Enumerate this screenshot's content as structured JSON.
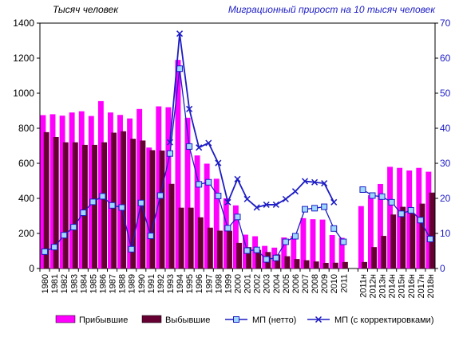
{
  "chart_data": {
    "type": "bar",
    "left_axis_label": "Тысяч человек",
    "right_axis_label": "Миграционный прирост на 10 тысяч человек",
    "categories": [
      "1980",
      "1981",
      "1982",
      "1983",
      "1984",
      "1985",
      "1986",
      "1987",
      "1988",
      "1989",
      "1990",
      "1991",
      "1992",
      "1993",
      "1994",
      "1995",
      "1996",
      "1997",
      "1998",
      "1999",
      "2000",
      "2001",
      "2002",
      "2003",
      "2004",
      "2005",
      "2006",
      "2007",
      "2008",
      "2009",
      "2010",
      "2011",
      "",
      "2011н",
      "2012н",
      "2013н",
      "2014н",
      "2015н",
      "2016н",
      "2017н",
      "2018н"
    ],
    "y_left": {
      "min": 0,
      "max": 1400,
      "ticks": [
        0,
        200,
        400,
        600,
        800,
        1000,
        1200,
        1400
      ]
    },
    "y_right": {
      "min": 0,
      "max": 70,
      "ticks": [
        0,
        10,
        20,
        30,
        40,
        50,
        60,
        70
      ]
    },
    "series": [
      {
        "name": "Прибывшие",
        "kind": "bar",
        "axis": "left",
        "color": "#ff00ff",
        "values": [
          875,
          880,
          872,
          890,
          897,
          870,
          955,
          890,
          876,
          856,
          910,
          690,
          925,
          920,
          1190,
          860,
          645,
          598,
          512,
          400,
          360,
          193,
          184,
          129,
          119,
          177,
          186,
          287,
          281,
          279,
          191,
          175,
          null,
          356,
          418,
          482,
          580,
          574,
          559,
          574,
          552
        ]
      },
      {
        "name": "Выбывшие",
        "kind": "bar",
        "axis": "left",
        "color": "#660033",
        "values": [
          778,
          750,
          720,
          720,
          705,
          705,
          720,
          775,
          783,
          740,
          730,
          675,
          673,
          483,
          347,
          347,
          292,
          233,
          216,
          215,
          146,
          122,
          106,
          94,
          80,
          70,
          54,
          47,
          40,
          32,
          33,
          37,
          null,
          37,
          122,
          186,
          308,
          352,
          313,
          370,
          433
        ]
      },
      {
        "name": "МП  (нетто)",
        "kind": "line",
        "axis": "right",
        "color": "#1c1cc4",
        "marker": "square",
        "values": [
          4.8,
          6.1,
          9.5,
          11.8,
          15.9,
          19.0,
          20.6,
          18.0,
          17.4,
          5.5,
          18.7,
          9.3,
          20.8,
          32.8,
          57.0,
          34.8,
          24.0,
          24.6,
          20.7,
          11.5,
          14.7,
          5.1,
          5.3,
          2.6,
          3.0,
          7.6,
          9.2,
          16.9,
          17.2,
          17.6,
          11.4,
          7.6,
          null,
          22.5,
          20.8,
          20.5,
          18.9,
          15.6,
          16.6,
          13.8,
          8.4
        ]
      },
      {
        "name": "МП  (с корректировками)",
        "kind": "line",
        "axis": "right",
        "color": "#1c1cc4",
        "marker": "cross",
        "values": [
          null,
          null,
          null,
          null,
          null,
          null,
          null,
          null,
          null,
          null,
          null,
          null,
          null,
          36.0,
          67.0,
          45.5,
          34.5,
          35.8,
          30.1,
          18.9,
          25.5,
          19.8,
          17.4,
          18.2,
          18.2,
          19.8,
          22.0,
          24.9,
          24.6,
          24.3,
          18.9,
          null,
          null,
          null,
          null,
          null,
          null,
          null,
          null,
          null,
          null
        ]
      }
    ],
    "legend_position": "bottom"
  }
}
